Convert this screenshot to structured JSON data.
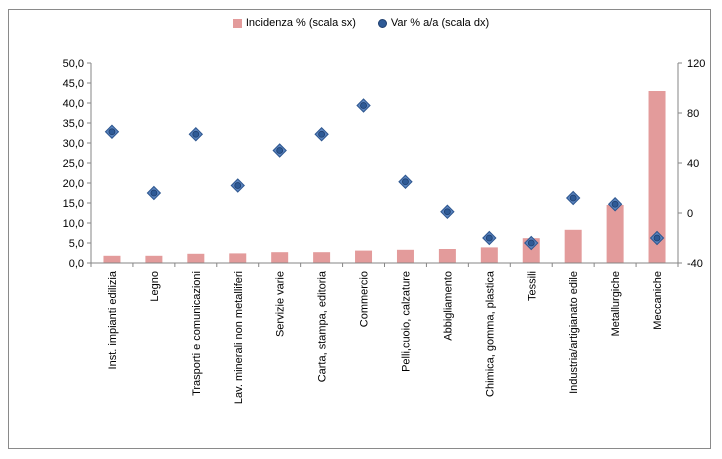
{
  "chart_data": {
    "type": "bar",
    "title": "",
    "xlabel": "",
    "ylabel": "",
    "categories": [
      "Inst. impianti edilizia",
      "Legno",
      "Trasporti e comunicazioni",
      "Lav. minerali non metalliferi",
      "Servizie varie",
      "Carta, stampa,  editoria",
      "Commercio",
      "Pelli,cuoio, calzature",
      "Abbigliamento",
      "Chimica, gomma,  plastica",
      "Tessili",
      "Industria/artigianato  edile",
      "Metallurgiche",
      "Meccaniche"
    ],
    "series": [
      {
        "name": "Incidenza % (scala sx)",
        "type": "bar",
        "axis": "left",
        "color": "#e39b9b",
        "values": [
          1.8,
          1.8,
          2.3,
          2.4,
          2.7,
          2.7,
          3.1,
          3.3,
          3.5,
          3.9,
          6.2,
          8.3,
          14.5,
          43.0
        ]
      },
      {
        "name": "Var % a/a (scala dx)",
        "type": "scatter",
        "axis": "right",
        "color": "#2e5a96",
        "values": [
          65,
          16,
          63,
          22,
          50,
          63,
          86,
          25,
          1,
          -20,
          -24,
          12,
          7,
          -20
        ]
      }
    ],
    "y_left": {
      "min": 0,
      "max": 50,
      "step": 5,
      "tick_labels": [
        "0,0",
        "5,0",
        "10,0",
        "15,0",
        "20,0",
        "25,0",
        "30,0",
        "35,0",
        "40,0",
        "45,0",
        "50,0"
      ]
    },
    "y_right": {
      "min": -40,
      "max": 120,
      "step": 40,
      "tick_labels": [
        "-40",
        "0",
        "40",
        "80",
        "120"
      ]
    },
    "grid": false,
    "legend_position": "top-center"
  }
}
